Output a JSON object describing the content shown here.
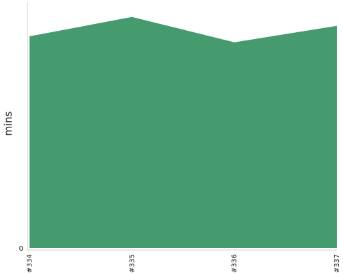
{
  "chart_data": {
    "type": "area",
    "categories": [
      "#334",
      "#335",
      "#336",
      "#337"
    ],
    "series": [
      {
        "values": [
          14.2,
          15.5,
          13.8,
          14.9
        ]
      }
    ],
    "title": "",
    "xlabel": "",
    "ylabel": "mins",
    "ylim": [
      0,
      16.5
    ],
    "y_ticks": [
      "0"
    ],
    "grid": false,
    "legend": "none",
    "fill_color": "#459b6e"
  }
}
